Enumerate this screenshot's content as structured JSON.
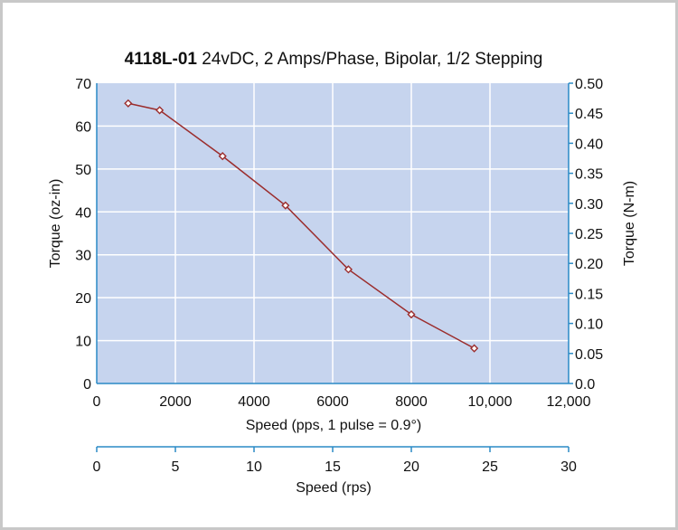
{
  "chart_data": {
    "type": "line",
    "title_bold": "4118L-01",
    "title_rest": " 24vDC, 2 Amps/Phase, Bipolar, 1/2 Stepping",
    "xlabel": "Speed (pps, 1 pulse = 0.9°)",
    "ylabel_left": "Torque (oz-in)",
    "ylabel_right": "Torque (N-m)",
    "x2label": "Speed (rps)",
    "xlim": [
      0,
      12000
    ],
    "ylim_left": [
      0,
      70
    ],
    "ylim_right": [
      0,
      0.5
    ],
    "x2lim": [
      0,
      30
    ],
    "x_ticks": [
      "0",
      "2000",
      "4000",
      "6000",
      "8000",
      "10,000",
      "12,000"
    ],
    "y_left_ticks": [
      "0",
      "10",
      "20",
      "30",
      "40",
      "50",
      "60",
      "70"
    ],
    "y_right_ticks": [
      "0.0",
      "0.05",
      "0.10",
      "0.15",
      "0.20",
      "0.25",
      "0.30",
      "0.35",
      "0.40",
      "0.45",
      "0.50"
    ],
    "x2_ticks": [
      "0",
      "5",
      "10",
      "15",
      "20",
      "25",
      "30"
    ],
    "grid": true,
    "series": [
      {
        "x": [
          800,
          1600,
          3200,
          4800,
          6400,
          8000,
          9600
        ],
        "y": [
          65.3,
          63.7,
          53.0,
          41.5,
          26.6,
          16.1,
          8.2
        ]
      }
    ],
    "colors": {
      "plot_bg": "#c6d4ee",
      "grid": "#ffffff",
      "line": "#9b2d2d",
      "axis": "#2a8ac6"
    }
  }
}
